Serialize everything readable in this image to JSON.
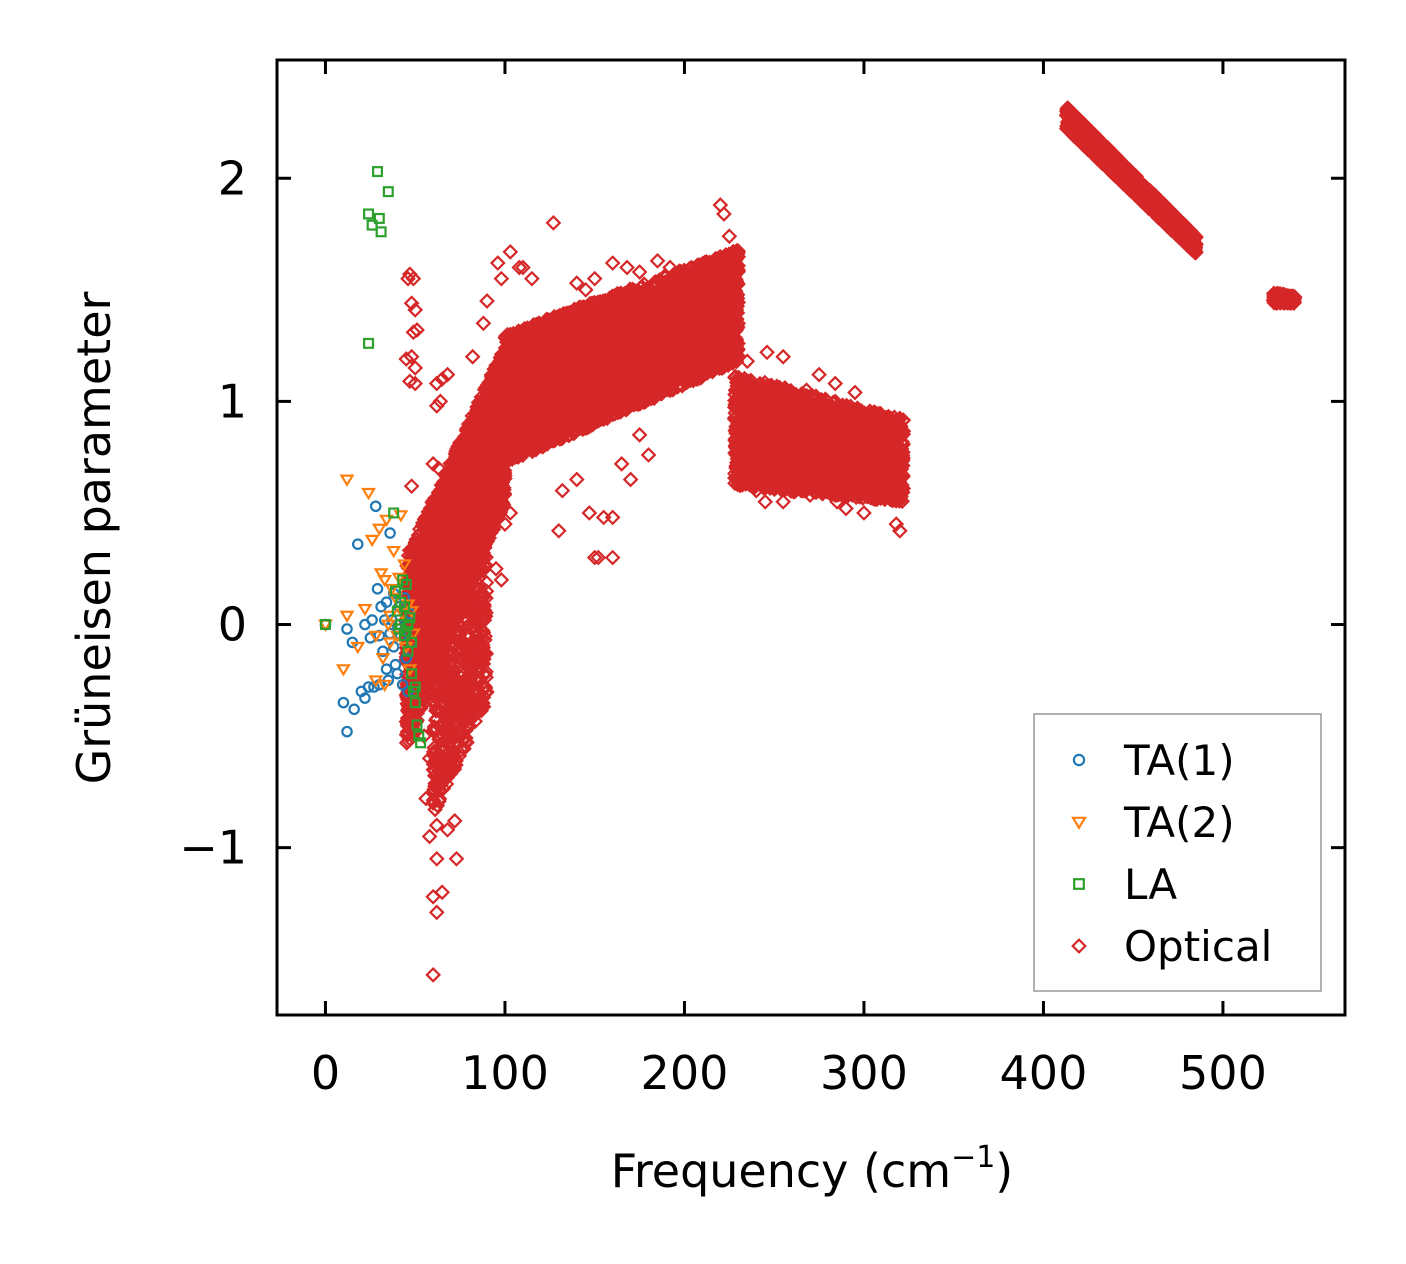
{
  "chart_data": {
    "type": "scatter",
    "title": "",
    "xlabel": "Frequency (cm",
    "xlabel_sup": "−1",
    "xlabel_end": ")",
    "ylabel": "Grüneisen parameter",
    "xlim": [
      -27,
      568
    ],
    "ylim": [
      -1.75,
      2.53
    ],
    "xticks": [
      0,
      100,
      200,
      300,
      400,
      500
    ],
    "xtick_labels": [
      "0",
      "100",
      "200",
      "300",
      "400",
      "500"
    ],
    "yticks": [
      -1,
      0,
      1,
      2
    ],
    "ytick_labels": [
      "−1",
      "0",
      "1",
      "2"
    ],
    "legend_position": "lower-right",
    "series": [
      {
        "name": "TA(1)",
        "marker": "circle",
        "color": "#1f77b4",
        "points": [
          [
            0,
            0
          ],
          [
            12,
            -0.02
          ],
          [
            15,
            -0.08
          ],
          [
            18,
            0.36
          ],
          [
            20,
            -0.3
          ],
          [
            10,
            -0.35
          ],
          [
            12,
            -0.48
          ],
          [
            16,
            -0.38
          ],
          [
            22,
            -0.33
          ],
          [
            24,
            -0.28
          ],
          [
            26,
            0.02
          ],
          [
            28,
            0.53
          ],
          [
            29,
            0.16
          ],
          [
            30,
            -0.05
          ],
          [
            31,
            0.08
          ],
          [
            32,
            -0.12
          ],
          [
            33,
            0.02
          ],
          [
            34,
            0.1
          ],
          [
            35,
            -0.25
          ],
          [
            36,
            0.41
          ],
          [
            36,
            -0.04
          ],
          [
            37,
            0.02
          ],
          [
            38,
            0.14
          ],
          [
            38,
            -0.1
          ],
          [
            39,
            -0.18
          ],
          [
            40,
            0.0
          ],
          [
            41,
            0.08
          ],
          [
            42,
            -0.05
          ],
          [
            43,
            -0.27
          ],
          [
            44,
            0.12
          ],
          [
            45,
            -0.15
          ],
          [
            46,
            -0.3
          ],
          [
            47,
            0.05
          ],
          [
            48,
            -0.08
          ],
          [
            22,
            0.0
          ],
          [
            25,
            -0.06
          ],
          [
            27,
            -0.28
          ],
          [
            30,
            -0.27
          ],
          [
            34,
            -0.2
          ],
          [
            40,
            -0.22
          ]
        ]
      },
      {
        "name": "TA(2)",
        "marker": "triangle-down",
        "color": "#ff7f0e",
        "points": [
          [
            0,
            0
          ],
          [
            10,
            -0.2
          ],
          [
            12,
            0.04
          ],
          [
            12,
            0.65
          ],
          [
            18,
            -0.1
          ],
          [
            22,
            0.07
          ],
          [
            24,
            0.59
          ],
          [
            26,
            0.38
          ],
          [
            28,
            -0.25
          ],
          [
            30,
            0.43
          ],
          [
            31,
            0.23
          ],
          [
            32,
            -0.15
          ],
          [
            33,
            0.2
          ],
          [
            34,
            0.47
          ],
          [
            35,
            0.0
          ],
          [
            36,
            -0.08
          ],
          [
            37,
            0.16
          ],
          [
            38,
            0.33
          ],
          [
            39,
            0.12
          ],
          [
            40,
            -0.05
          ],
          [
            41,
            0.21
          ],
          [
            42,
            0.49
          ],
          [
            43,
            0.05
          ],
          [
            44,
            0.27
          ],
          [
            45,
            -0.1
          ],
          [
            46,
            0.09
          ],
          [
            47,
            -0.2
          ],
          [
            48,
            0.06
          ],
          [
            49,
            -0.04
          ],
          [
            28,
            -0.05
          ],
          [
            33,
            -0.27
          ],
          [
            36,
            0.04
          ]
        ]
      },
      {
        "name": "LA",
        "marker": "square",
        "color": "#2ca02c",
        "points": [
          [
            0,
            0
          ],
          [
            24,
            1.26
          ],
          [
            24,
            1.84
          ],
          [
            26,
            1.79
          ],
          [
            29,
            2.03
          ],
          [
            30,
            1.82
          ],
          [
            31,
            1.76
          ],
          [
            35,
            1.94
          ],
          [
            38,
            0.5
          ],
          [
            39,
            0.15
          ],
          [
            40,
            0.06
          ],
          [
            41,
            -0.02
          ],
          [
            42,
            0.1
          ],
          [
            43,
            0.2
          ],
          [
            44,
            -0.05
          ],
          [
            45,
            0.18
          ],
          [
            46,
            -0.12
          ],
          [
            47,
            0.03
          ],
          [
            48,
            -0.22
          ],
          [
            49,
            -0.3
          ],
          [
            50,
            -0.35
          ],
          [
            51,
            -0.45
          ],
          [
            52,
            -0.5
          ],
          [
            53,
            -0.53
          ],
          [
            44,
            0.08
          ],
          [
            46,
            0.0
          ],
          [
            48,
            -0.08
          ],
          [
            50,
            -0.28
          ],
          [
            42,
            0.0
          ],
          [
            45,
            -0.03
          ]
        ]
      },
      {
        "name": "Optical",
        "marker": "diamond",
        "color": "#d62728",
        "ribbons": [
          {
            "x0": 45,
            "x1": 100,
            "lo0": -0.55,
            "lo1": 0.55,
            "hi0": 0.3,
            "hi1": 1.25,
            "n": 2600
          },
          {
            "x0": 60,
            "x1": 90,
            "lo0": -0.85,
            "lo1": -0.35,
            "hi0": 0.0,
            "hi1": 0.7,
            "n": 700
          },
          {
            "x0": 100,
            "x1": 230,
            "lo0": 0.72,
            "lo1": 1.18,
            "hi0": 1.3,
            "hi1": 1.68,
            "n": 5200
          },
          {
            "x0": 228,
            "x1": 322,
            "lo0": 0.62,
            "lo1": 0.55,
            "hi0": 1.12,
            "hi1": 0.92,
            "n": 2600
          },
          {
            "x0": 413,
            "x1": 485,
            "lo0": 2.22,
            "lo1": 1.66,
            "hi0": 2.32,
            "hi1": 1.74,
            "n": 1400
          },
          {
            "x0": 528,
            "x1": 540,
            "lo0": 1.44,
            "lo1": 1.44,
            "hi0": 1.49,
            "hi1": 1.47,
            "n": 160
          }
        ],
        "outliers": [
          [
            60,
            -1.57
          ],
          [
            62,
            -1.29
          ],
          [
            60,
            -1.22
          ],
          [
            65,
            -1.2
          ],
          [
            58,
            -0.95
          ],
          [
            62,
            -1.05
          ],
          [
            56,
            -0.78
          ],
          [
            60,
            -0.8
          ],
          [
            58,
            -0.6
          ],
          [
            62,
            -0.9
          ],
          [
            73,
            -1.05
          ],
          [
            68,
            -0.92
          ],
          [
            72,
            -0.88
          ],
          [
            55,
            -0.5
          ],
          [
            50,
            -0.48
          ],
          [
            48,
            -0.3
          ],
          [
            48,
            0.62
          ],
          [
            46,
            1.55
          ],
          [
            47,
            1.57
          ],
          [
            49,
            1.55
          ],
          [
            48,
            1.44
          ],
          [
            50,
            1.41
          ],
          [
            49,
            1.31
          ],
          [
            51,
            1.32
          ],
          [
            45,
            1.19
          ],
          [
            48,
            1.2
          ],
          [
            50,
            1.15
          ],
          [
            47,
            1.09
          ],
          [
            50,
            1.08
          ],
          [
            62,
            1.08
          ],
          [
            65,
            1.1
          ],
          [
            68,
            1.12
          ],
          [
            64,
            1.0
          ],
          [
            62,
            0.98
          ],
          [
            60,
            0.72
          ],
          [
            63,
            0.7
          ],
          [
            66,
            0.64
          ],
          [
            72,
            0.55
          ],
          [
            95,
            0.25
          ],
          [
            98,
            0.2
          ],
          [
            100,
            0.45
          ],
          [
            103,
            0.5
          ],
          [
            127,
            1.8
          ],
          [
            115,
            1.55
          ],
          [
            110,
            1.6
          ],
          [
            130,
            0.42
          ],
          [
            132,
            0.6
          ],
          [
            140,
            0.65
          ],
          [
            147,
            0.5
          ],
          [
            150,
            0.3
          ],
          [
            152,
            0.3
          ],
          [
            155,
            0.48
          ],
          [
            160,
            0.48
          ],
          [
            160,
            0.3
          ],
          [
            140,
            1.53
          ],
          [
            145,
            1.5
          ],
          [
            150,
            1.55
          ],
          [
            160,
            1.62
          ],
          [
            168,
            1.6
          ],
          [
            175,
            1.58
          ],
          [
            185,
            1.63
          ],
          [
            192,
            1.6
          ],
          [
            180,
            0.76
          ],
          [
            175,
            0.85
          ],
          [
            165,
            0.72
          ],
          [
            170,
            0.65
          ],
          [
            220,
            1.88
          ],
          [
            222,
            1.84
          ],
          [
            225,
            1.74
          ],
          [
            240,
            0.6
          ],
          [
            245,
            0.55
          ],
          [
            255,
            0.55
          ],
          [
            262,
            0.6
          ],
          [
            270,
            0.58
          ],
          [
            280,
            0.62
          ],
          [
            285,
            0.55
          ],
          [
            290,
            0.52
          ],
          [
            295,
            1.04
          ],
          [
            305,
            0.82
          ],
          [
            315,
            0.6
          ],
          [
            318,
            0.45
          ],
          [
            320,
            0.42
          ],
          [
            275,
            1.12
          ],
          [
            255,
            1.2
          ],
          [
            246,
            1.22
          ],
          [
            235,
            1.18
          ],
          [
            300,
            0.5
          ],
          [
            268,
            1.05
          ],
          [
            284,
            1.08
          ],
          [
            248,
            0.72
          ],
          [
            236,
            0.82
          ],
          [
            88,
            1.35
          ],
          [
            82,
            1.2
          ],
          [
            90,
            1.45
          ],
          [
            96,
            1.62
          ],
          [
            103,
            1.67
          ],
          [
            108,
            1.6
          ],
          [
            98,
            1.55
          ]
        ]
      }
    ]
  }
}
